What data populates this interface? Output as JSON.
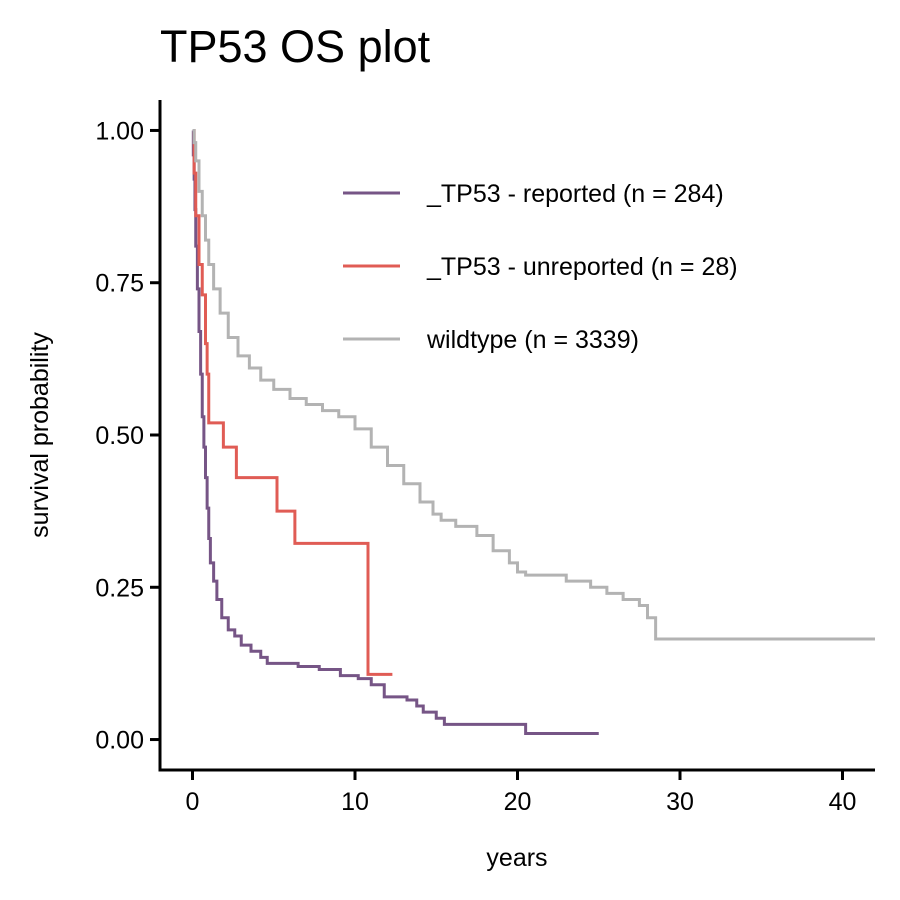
{
  "chart_data": {
    "type": "line",
    "title": "TP53 OS plot",
    "xlabel": "years",
    "ylabel": "survival probability",
    "xlim": [
      -2,
      42
    ],
    "ylim": [
      -0.05,
      1.05
    ],
    "x_ticks": [
      0,
      10,
      20,
      30,
      40
    ],
    "y_ticks": [
      0,
      0.25,
      0.5,
      0.75,
      1
    ],
    "x_tick_labels": [
      "0",
      "10",
      "20",
      "30",
      "40"
    ],
    "y_tick_labels": [
      "0.00",
      "0.25",
      "0.50",
      "0.75",
      "1.00"
    ],
    "grid": false,
    "legend_position": "top-right",
    "series": [
      {
        "name": "_TP53 - reported (n = 284)",
        "color": "#765586",
        "points": [
          [
            0,
            1.0
          ],
          [
            0.05,
            0.96
          ],
          [
            0.1,
            0.92
          ],
          [
            0.15,
            0.87
          ],
          [
            0.2,
            0.81
          ],
          [
            0.3,
            0.74
          ],
          [
            0.4,
            0.67
          ],
          [
            0.5,
            0.6
          ],
          [
            0.6,
            0.53
          ],
          [
            0.7,
            0.48
          ],
          [
            0.8,
            0.43
          ],
          [
            0.9,
            0.38
          ],
          [
            1.0,
            0.33
          ],
          [
            1.1,
            0.29
          ],
          [
            1.3,
            0.26
          ],
          [
            1.5,
            0.23
          ],
          [
            1.8,
            0.2
          ],
          [
            2.2,
            0.18
          ],
          [
            2.6,
            0.17
          ],
          [
            3.0,
            0.155
          ],
          [
            3.6,
            0.145
          ],
          [
            4.2,
            0.135
          ],
          [
            4.6,
            0.125
          ],
          [
            5.5,
            0.125
          ],
          [
            6.5,
            0.12
          ],
          [
            7.0,
            0.12
          ],
          [
            7.8,
            0.115
          ],
          [
            8.8,
            0.115
          ],
          [
            9.1,
            0.105
          ],
          [
            10.2,
            0.1
          ],
          [
            11.0,
            0.09
          ],
          [
            11.6,
            0.09
          ],
          [
            11.8,
            0.07
          ],
          [
            12.5,
            0.07
          ],
          [
            13.2,
            0.065
          ],
          [
            13.8,
            0.055
          ],
          [
            14.2,
            0.045
          ],
          [
            15.0,
            0.035
          ],
          [
            15.5,
            0.025
          ],
          [
            16.5,
            0.025
          ],
          [
            17.5,
            0.025
          ],
          [
            19.0,
            0.025
          ],
          [
            20.5,
            0.01
          ],
          [
            23.0,
            0.01
          ],
          [
            25.0,
            0.01
          ]
        ]
      },
      {
        "name": "_TP53 - unreported (n = 28)",
        "color": "#e05c55",
        "points": [
          [
            0,
            1.0
          ],
          [
            0.1,
            0.93
          ],
          [
            0.2,
            0.86
          ],
          [
            0.4,
            0.78
          ],
          [
            0.6,
            0.73
          ],
          [
            0.8,
            0.65
          ],
          [
            0.9,
            0.6
          ],
          [
            1.0,
            0.52
          ],
          [
            1.9,
            0.48
          ],
          [
            2.7,
            0.43
          ],
          [
            5.2,
            0.375
          ],
          [
            6.3,
            0.322
          ],
          [
            10.8,
            0.107
          ],
          [
            12.3,
            0.107
          ]
        ]
      },
      {
        "name": "wildtype (n = 3339)",
        "color": "#b3b3b3",
        "points": [
          [
            0,
            1.0
          ],
          [
            0.1,
            0.98
          ],
          [
            0.2,
            0.95
          ],
          [
            0.4,
            0.9
          ],
          [
            0.6,
            0.86
          ],
          [
            0.8,
            0.82
          ],
          [
            1.0,
            0.78
          ],
          [
            1.3,
            0.74
          ],
          [
            1.7,
            0.7
          ],
          [
            2.2,
            0.66
          ],
          [
            2.8,
            0.63
          ],
          [
            3.5,
            0.61
          ],
          [
            4.2,
            0.59
          ],
          [
            5.0,
            0.575
          ],
          [
            6.0,
            0.56
          ],
          [
            7.0,
            0.55
          ],
          [
            8.0,
            0.54
          ],
          [
            9.0,
            0.53
          ],
          [
            10.0,
            0.51
          ],
          [
            11.0,
            0.48
          ],
          [
            12.0,
            0.45
          ],
          [
            13.0,
            0.42
          ],
          [
            14.0,
            0.39
          ],
          [
            14.8,
            0.37
          ],
          [
            15.3,
            0.36
          ],
          [
            16.2,
            0.35
          ],
          [
            17.5,
            0.335
          ],
          [
            18.5,
            0.31
          ],
          [
            19.5,
            0.29
          ],
          [
            20.0,
            0.275
          ],
          [
            20.5,
            0.27
          ],
          [
            22.0,
            0.27
          ],
          [
            23.0,
            0.26
          ],
          [
            24.5,
            0.25
          ],
          [
            25.5,
            0.24
          ],
          [
            26.5,
            0.23
          ],
          [
            27.5,
            0.22
          ],
          [
            28.0,
            0.2
          ],
          [
            28.5,
            0.165
          ],
          [
            35.0,
            0.165
          ],
          [
            42.0,
            0.165
          ]
        ]
      }
    ]
  }
}
